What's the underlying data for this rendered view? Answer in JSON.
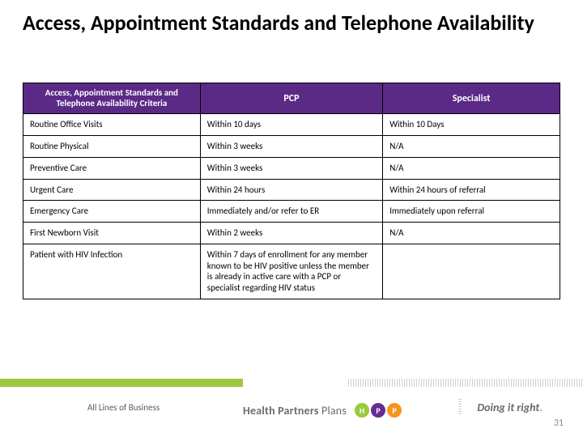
{
  "title": "Access, Appointment Standards and Telephone Availability",
  "table": {
    "headers": {
      "criteria": "Access, Appointment Standards and Telephone Availability Criteria",
      "pcp": "PCP",
      "specialist": "Specialist"
    },
    "rows": [
      {
        "criteria": "Routine Office Visits",
        "pcp": "Within 10 days",
        "specialist": "Within 10 Days"
      },
      {
        "criteria": "Routine Physical",
        "pcp": "Within 3 weeks",
        "specialist": "N/A"
      },
      {
        "criteria": "Preventive Care",
        "pcp": "Within 3 weeks",
        "specialist": "N/A"
      },
      {
        "criteria": "Urgent Care",
        "pcp": "Within 24 hours",
        "specialist": "Within 24 hours of referral"
      },
      {
        "criteria": "Emergency Care",
        "pcp": "Immediately and/or refer to ER",
        "specialist": "Immediately upon referral"
      },
      {
        "criteria": "First Newborn Visit",
        "pcp": "Within 2 weeks",
        "specialist": "N/A"
      },
      {
        "criteria": "Patient with HIV Infection",
        "pcp": "Within 7 days of enrollment for any member known to be HIV positive unless the member is already in active care with a PCP or specialist regarding HIV status",
        "specialist": ""
      }
    ]
  },
  "footer": {
    "lob": "All Lines of Business",
    "brand_strong": "Health Partners",
    "brand_light": "Plans",
    "dot_h": "H",
    "dot_p": "P",
    "dot_p2": "P",
    "tagline_a": "Doing it ",
    "tagline_b": "right",
    "tagline_dot": "."
  },
  "page_number": "31",
  "colors": {
    "header_bg": "#5b2a86",
    "accent_green": "#9aca3c",
    "accent_purple": "#662d91",
    "accent_orange": "#f7941d"
  }
}
